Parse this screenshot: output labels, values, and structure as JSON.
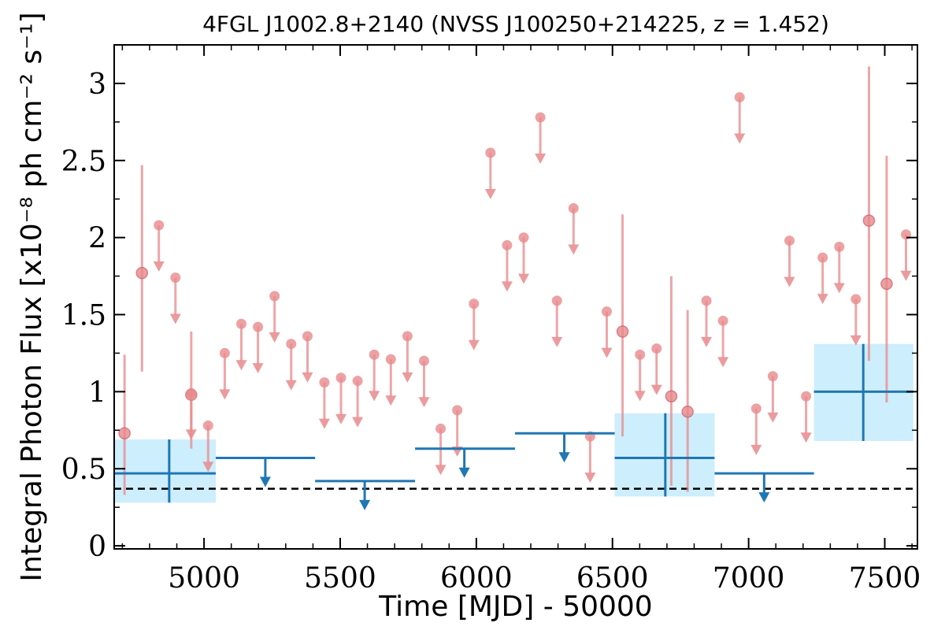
{
  "chart_data": {
    "type": "scatter",
    "title": "4FGL J1002.8+2140 (NVSS J100250+214225, z = 1.452)",
    "xlabel": "Time [MJD] - 50000",
    "ylabel": "Integral Photon Flux [x10⁻⁸ ph cm⁻² s⁻¹]",
    "xlim": [
      4670,
      7620
    ],
    "ylim": [
      -0.02,
      3.25
    ],
    "xticks": [
      5000,
      5500,
      6000,
      6500,
      7000,
      7500
    ],
    "xtick_labels": [
      "5000",
      "5500",
      "6000",
      "6500",
      "7000",
      "7500"
    ],
    "yticks": [
      0,
      0.5,
      1,
      1.5,
      2,
      2.5,
      3
    ],
    "ytick_labels": [
      "0",
      "0.5",
      "1",
      "1.5",
      "2",
      "2.5",
      "3"
    ],
    "colors": {
      "short_bin": "#e8898c",
      "long_bin": "#1f77b4",
      "band_fill": "#cdeefc",
      "reference_line": "#000000"
    },
    "reference_level": 0.37,
    "grid": false,
    "series": [
      {
        "points": [
          {
            "x": 4708,
            "y": 0.73,
            "lo": 0.33,
            "hi": 1.24
          },
          {
            "x": 4772,
            "y": 1.77,
            "lo": 1.13,
            "hi": 2.47
          },
          {
            "x": 4953,
            "y": 0.98,
            "lo": 0.63,
            "hi": 1.39
          },
          {
            "x": 6537,
            "y": 1.39,
            "lo": 0.71,
            "hi": 2.15
          },
          {
            "x": 6716,
            "y": 0.97,
            "lo": 0.39,
            "hi": 1.75
          },
          {
            "x": 6776,
            "y": 0.87,
            "lo": 0.35,
            "hi": 1.53
          },
          {
            "x": 7442,
            "y": 2.11,
            "lo": 1.2,
            "hi": 3.11
          },
          {
            "x": 7507,
            "y": 1.7,
            "lo": 0.93,
            "hi": 2.53
          }
        ],
        "upper_limits": [
          {
            "x": 4834,
            "y": 2.08
          },
          {
            "x": 4895,
            "y": 1.74
          },
          {
            "x": 4953,
            "y": 0.99
          },
          {
            "x": 5015,
            "y": 0.78
          },
          {
            "x": 5076,
            "y": 1.25
          },
          {
            "x": 5137,
            "y": 1.44
          },
          {
            "x": 5198,
            "y": 1.42
          },
          {
            "x": 5259,
            "y": 1.62
          },
          {
            "x": 5320,
            "y": 1.31
          },
          {
            "x": 5380,
            "y": 1.36
          },
          {
            "x": 5442,
            "y": 1.06
          },
          {
            "x": 5503,
            "y": 1.09
          },
          {
            "x": 5564,
            "y": 1.07
          },
          {
            "x": 5625,
            "y": 1.24
          },
          {
            "x": 5686,
            "y": 1.21
          },
          {
            "x": 5747,
            "y": 1.36
          },
          {
            "x": 5808,
            "y": 1.2
          },
          {
            "x": 5869,
            "y": 0.76
          },
          {
            "x": 5930,
            "y": 0.88
          },
          {
            "x": 5991,
            "y": 1.57
          },
          {
            "x": 6052,
            "y": 2.55
          },
          {
            "x": 6113,
            "y": 1.95
          },
          {
            "x": 6174,
            "y": 2.0
          },
          {
            "x": 6235,
            "y": 2.78
          },
          {
            "x": 6296,
            "y": 1.59
          },
          {
            "x": 6357,
            "y": 2.19
          },
          {
            "x": 6418,
            "y": 0.71
          },
          {
            "x": 6479,
            "y": 1.52
          },
          {
            "x": 6601,
            "y": 1.24
          },
          {
            "x": 6662,
            "y": 1.28
          },
          {
            "x": 6845,
            "y": 1.59
          },
          {
            "x": 6906,
            "y": 1.46
          },
          {
            "x": 6967,
            "y": 2.91
          },
          {
            "x": 7028,
            "y": 0.89
          },
          {
            "x": 7089,
            "y": 1.1
          },
          {
            "x": 7150,
            "y": 1.98
          },
          {
            "x": 7211,
            "y": 0.97
          },
          {
            "x": 7272,
            "y": 1.87
          },
          {
            "x": 7333,
            "y": 1.94
          },
          {
            "x": 7394,
            "y": 1.6
          },
          {
            "x": 7578,
            "y": 2.02
          }
        ]
      },
      {
        "points": [
          {
            "x": 4872,
            "x0": 4670,
            "x1": 5043,
            "y": 0.47,
            "lo": 0.28,
            "hi": 0.69
          },
          {
            "x": 6694,
            "x0": 6508,
            "x1": 6875,
            "y": 0.57,
            "lo": 0.32,
            "hi": 0.86
          },
          {
            "x": 7421,
            "x0": 7240,
            "x1": 7605,
            "y": 1.0,
            "lo": 0.68,
            "hi": 1.31
          }
        ],
        "upper_limits": [
          {
            "x": 5225,
            "x0": 5043,
            "x1": 5408,
            "y": 0.57
          },
          {
            "x": 5590,
            "x0": 5408,
            "x1": 5775,
            "y": 0.42
          },
          {
            "x": 5956,
            "x0": 5775,
            "x1": 6142,
            "y": 0.63
          },
          {
            "x": 6323,
            "x0": 6142,
            "x1": 6508,
            "y": 0.73
          },
          {
            "x": 7057,
            "x0": 6875,
            "x1": 7240,
            "y": 0.47
          }
        ]
      }
    ]
  }
}
